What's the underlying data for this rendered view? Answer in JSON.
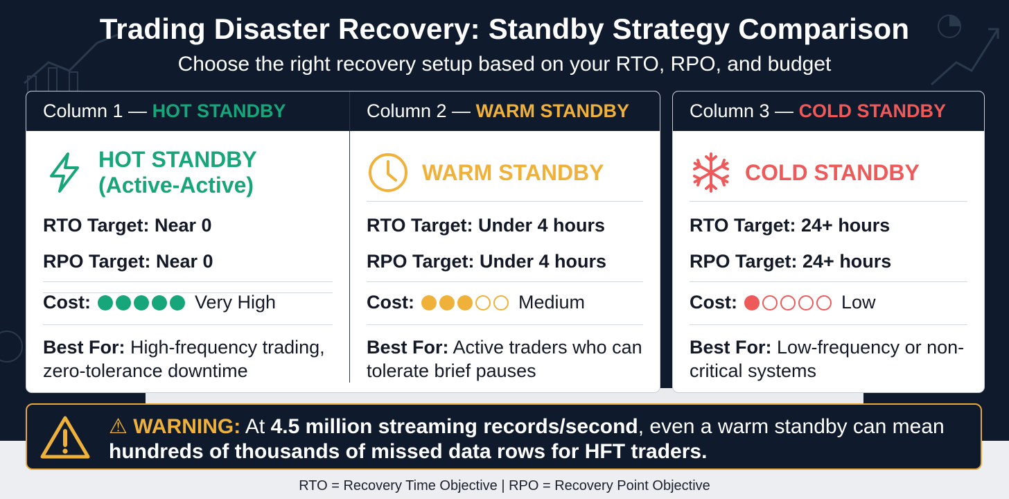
{
  "title": "Trading Disaster Recovery: Standby Strategy Comparison",
  "subtitle": "Choose the right recovery setup based on your RTO, RPO, and budget",
  "colors": {
    "background": "#0f1b2d",
    "hot": "#17a57a",
    "warm": "#f0b13a",
    "cold": "#ee5a5a"
  },
  "columns": [
    {
      "header_prefix": "Column 1 — ",
      "header_name": "HOT STANDBY",
      "icon": "lightning-bolt-icon",
      "name_line1": "HOT STANDBY",
      "name_line2": "(Active-Active)",
      "rto": "RTO Target: Near 0",
      "rpo": "RPO Target: Near 0",
      "cost_label": "Cost:",
      "cost_filled": 5,
      "cost_total": 5,
      "cost_text": "Very High",
      "best_label": "Best For:",
      "best_text": "High-frequency trading, zero-tolerance downtime"
    },
    {
      "header_prefix": "Column 2 — ",
      "header_name": "WARM STANDBY",
      "icon": "clock-icon",
      "name_line1": "WARM STANDBY",
      "rto": "RTO Target: Under 4 hours",
      "rpo": "RPO Target: Under 4 hours",
      "cost_label": "Cost:",
      "cost_filled": 3,
      "cost_total": 5,
      "cost_text": "Medium",
      "best_label": "Best For:",
      "best_text": "Active traders who can tolerate brief pauses"
    },
    {
      "header_prefix": "Column 3 — ",
      "header_name": "COLD STANDBY",
      "icon": "snowflake-icon",
      "name_line1": "COLD STANDBY",
      "rto": "RTO Target: 24+ hours",
      "rpo": "RPO Target: 24+ hours",
      "cost_label": "Cost:",
      "cost_filled": 1,
      "cost_total": 5,
      "cost_text": "Low",
      "best_label": "Best For:",
      "best_text": "Low-frequency or non-critical systems"
    }
  ],
  "warning": {
    "icon": "warning-triangle-icon",
    "label": "⚠ WARNING:",
    "text_1": " At ",
    "bold_1": "4.5 million streaming records/second",
    "text_2": ", even a warm standby can mean ",
    "bold_2": "hundreds of thousands of missed data rows for HFT traders."
  },
  "footer": "RTO = Recovery Time Objective | RPO = Recovery Point Objective"
}
